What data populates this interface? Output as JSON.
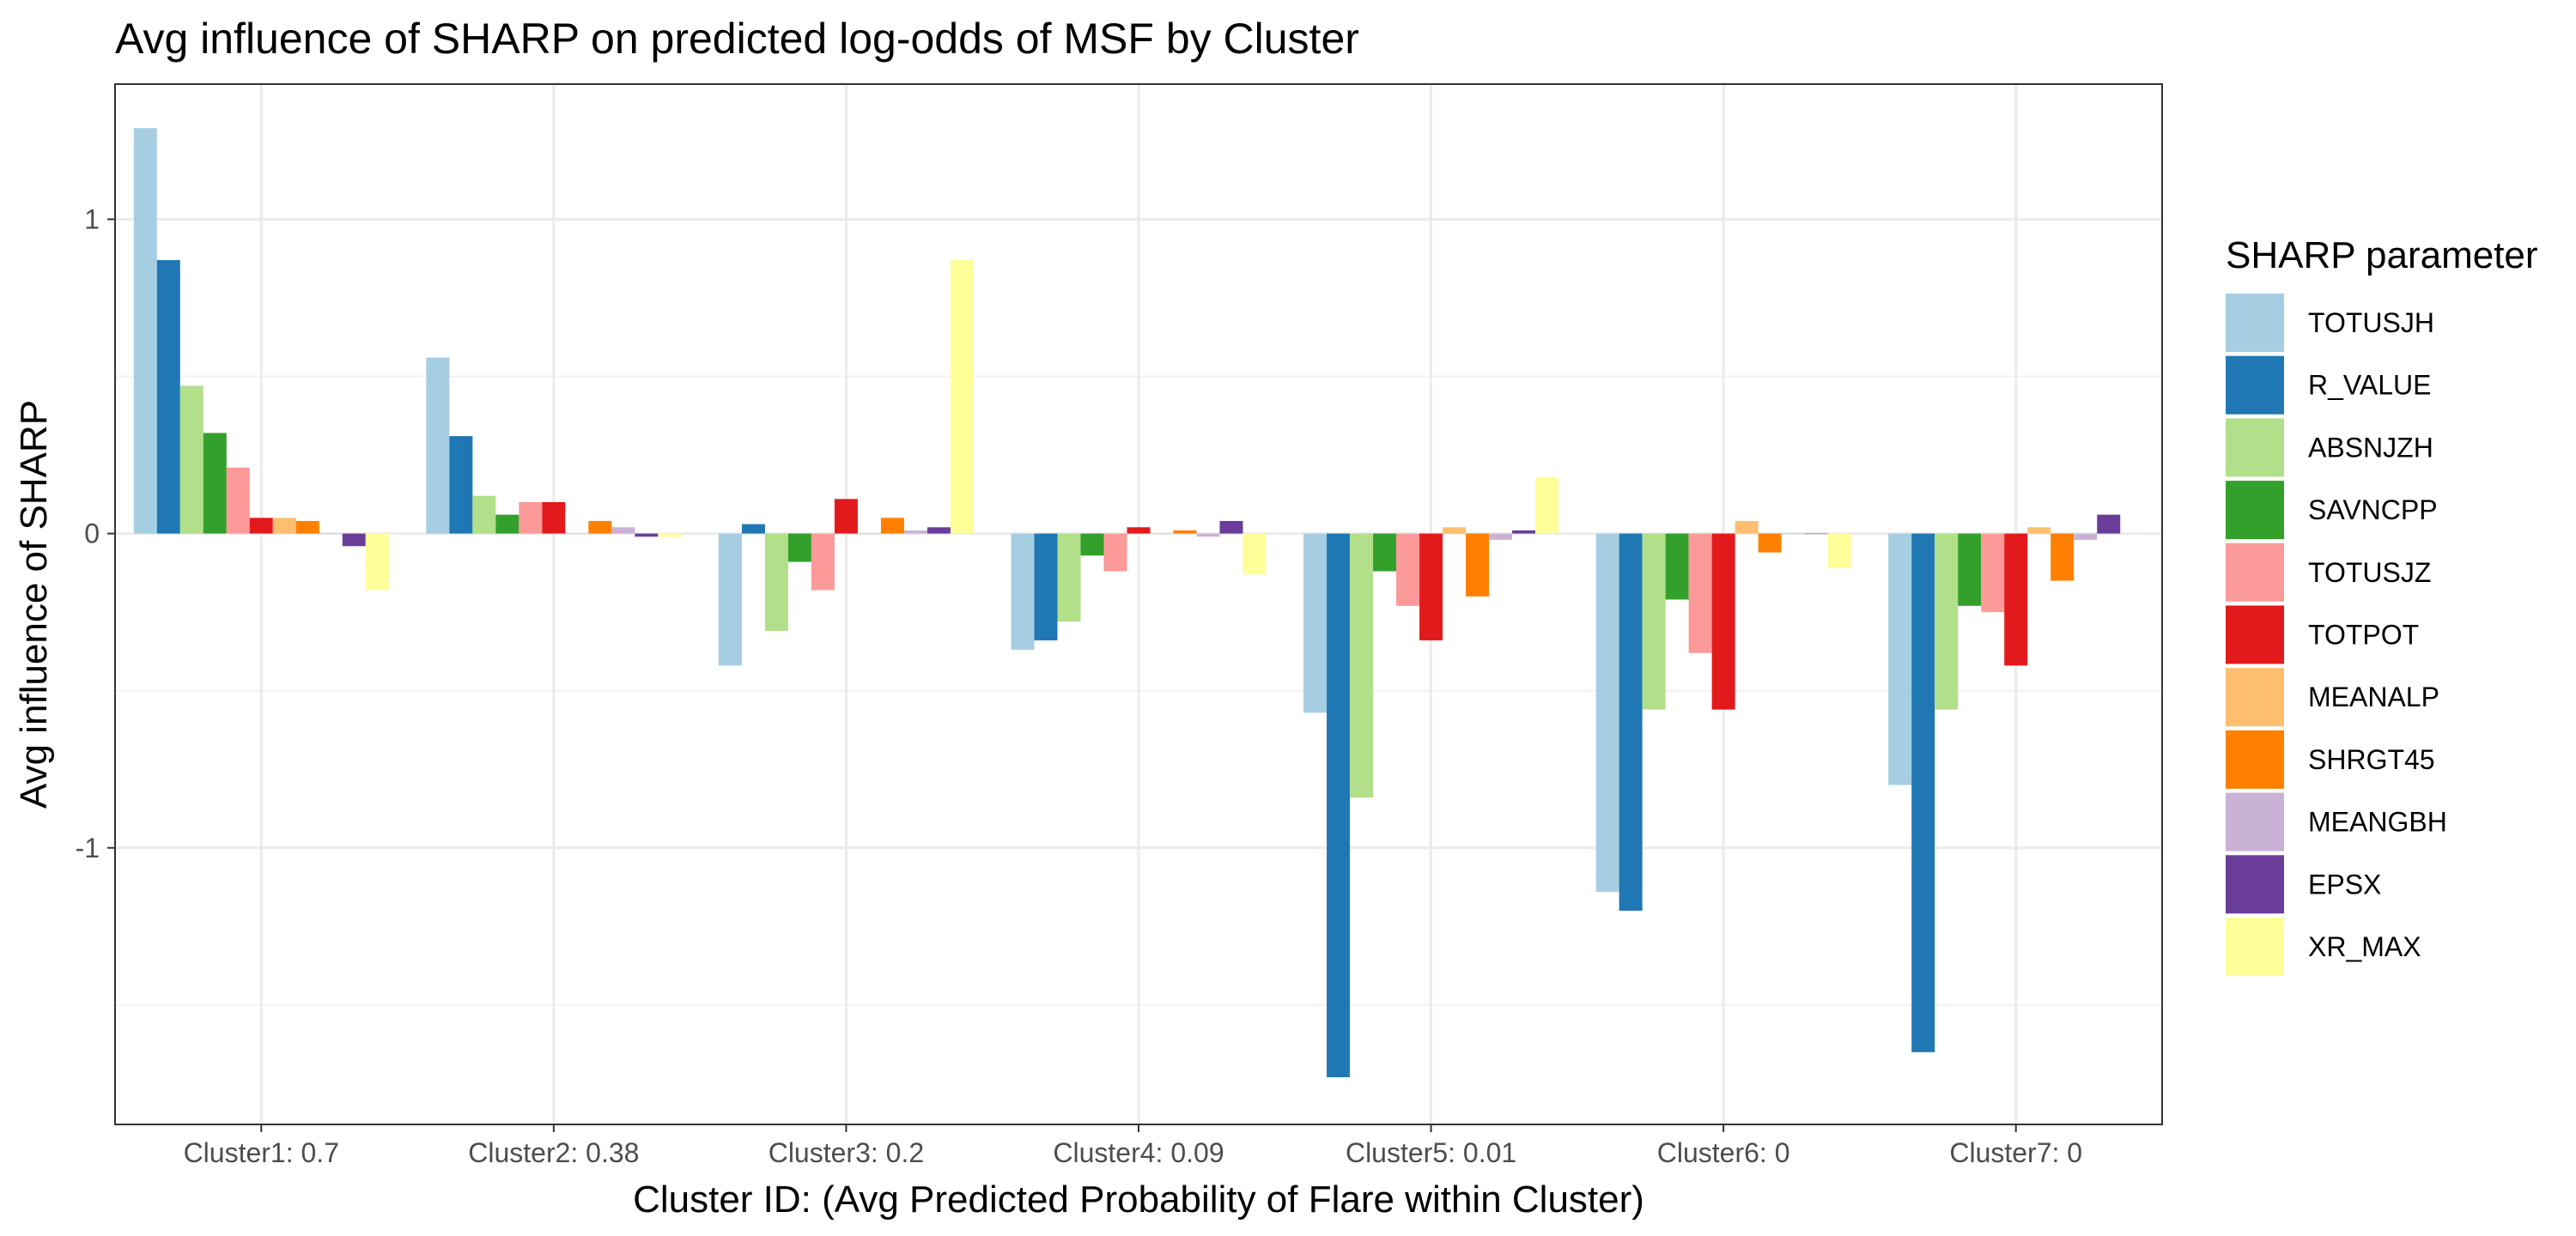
{
  "chart_data": {
    "type": "bar",
    "title": "Avg influence of SHARP on predicted log-odds of MSF by Cluster",
    "xlabel": "Cluster ID: (Avg Predicted Probability of Flare within Cluster)",
    "ylabel": "Avg influence of SHARP",
    "categories": [
      "Cluster1: 0.7",
      "Cluster2: 0.38",
      "Cluster3: 0.2",
      "Cluster4: 0.09",
      "Cluster5: 0.01",
      "Cluster6: 0",
      "Cluster7: 0"
    ],
    "ylim": [
      -1.88,
      1.43
    ],
    "yticks": [
      -1,
      0,
      1
    ],
    "ytick_labels": [
      "-1",
      "0",
      "1"
    ],
    "grid": true,
    "legend_title": "SHARP parameter",
    "legend_position": "right",
    "series": [
      {
        "name": "TOTUSJH",
        "color": "#A6CEE3",
        "values": [
          1.29,
          0.56,
          -0.42,
          -0.37,
          -0.57,
          -1.14,
          -0.8
        ]
      },
      {
        "name": "R_VALUE",
        "color": "#1F78B4",
        "values": [
          0.87,
          0.31,
          0.03,
          -0.34,
          -1.73,
          -1.2,
          -1.65
        ]
      },
      {
        "name": "ABSNJZH",
        "color": "#B2DF8A",
        "values": [
          0.47,
          0.12,
          -0.31,
          -0.28,
          -0.84,
          -0.56,
          -0.56
        ]
      },
      {
        "name": "SAVNCPP",
        "color": "#33A02C",
        "values": [
          0.32,
          0.06,
          -0.09,
          -0.07,
          -0.12,
          -0.21,
          -0.23
        ]
      },
      {
        "name": "TOTUSJZ",
        "color": "#FB9A99",
        "values": [
          0.21,
          0.1,
          -0.18,
          -0.12,
          -0.23,
          -0.38,
          -0.25
        ]
      },
      {
        "name": "TOTPOT",
        "color": "#E31A1C",
        "values": [
          0.05,
          0.1,
          0.11,
          0.02,
          -0.34,
          -0.56,
          -0.42
        ]
      },
      {
        "name": "MEANALP",
        "color": "#FDBF6F",
        "values": [
          0.05,
          0.0,
          0.0,
          0.0,
          0.02,
          0.04,
          0.02
        ]
      },
      {
        "name": "SHRGT45",
        "color": "#FF7F00",
        "values": [
          0.04,
          0.04,
          0.05,
          0.01,
          -0.2,
          -0.06,
          -0.15
        ]
      },
      {
        "name": "MEANGBH",
        "color": "#CAB2D6",
        "values": [
          0.0,
          0.02,
          0.01,
          -0.01,
          -0.02,
          0.0,
          -0.02
        ]
      },
      {
        "name": "EPSX",
        "color": "#6A3D9A",
        "values": [
          -0.04,
          -0.01,
          0.02,
          0.04,
          0.01,
          0.0,
          0.06
        ]
      },
      {
        "name": "XR_MAX",
        "color": "#FFFF99",
        "values": [
          -0.18,
          -0.01,
          0.87,
          -0.13,
          0.18,
          -0.11,
          0.0
        ]
      }
    ]
  }
}
